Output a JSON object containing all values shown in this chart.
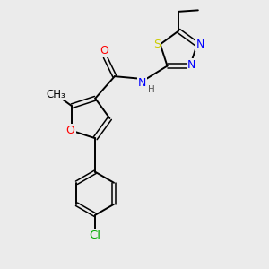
{
  "bg_color": "#ebebeb",
  "atom_colors": {
    "C": "#000000",
    "N": "#0000ff",
    "O": "#ff0000",
    "S": "#cccc00",
    "Cl": "#00aa00",
    "H": "#555555"
  },
  "bond_color": "#000000",
  "font_size_atom": 9,
  "font_size_small": 8
}
